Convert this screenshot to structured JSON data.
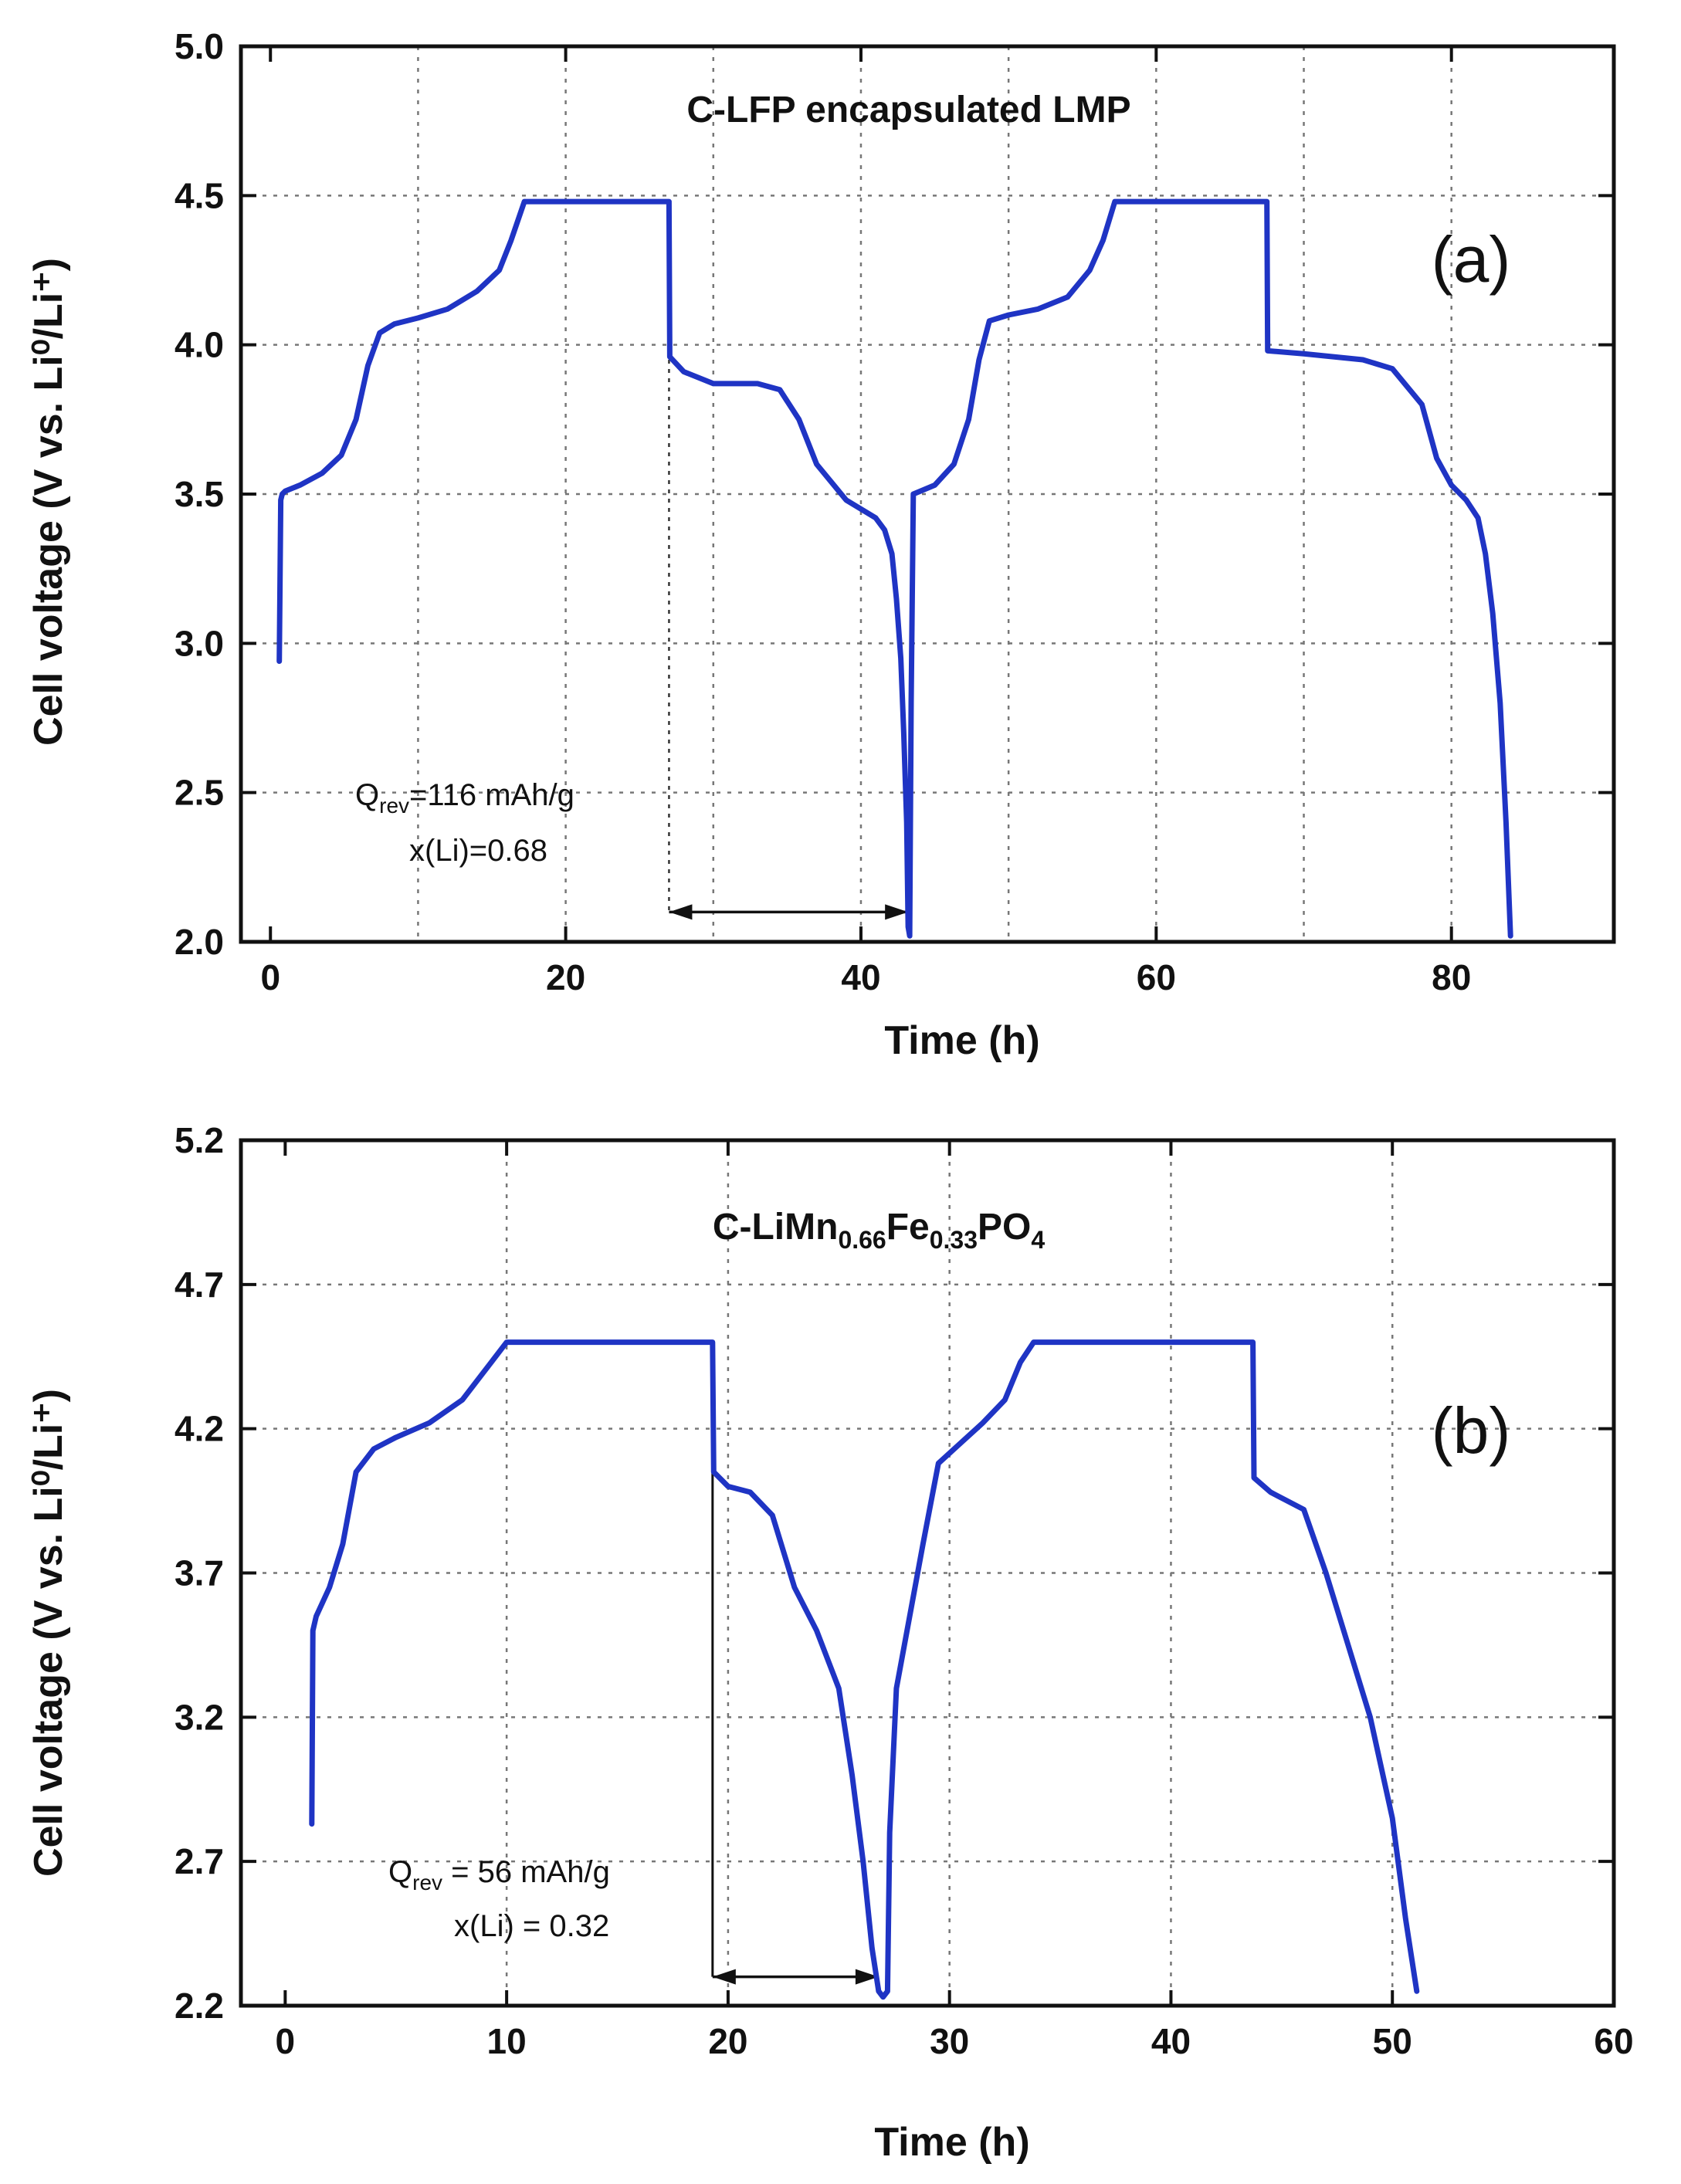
{
  "chart_data": [
    {
      "type": "line",
      "panel": "a",
      "title": "C-LFP encapsulated LMP",
      "panel_label": "(a)",
      "xlabel": "Time (h)",
      "ylabel": "Cell voltage (V vs. Li⁰/Li⁺)",
      "xlim": [
        -2,
        91
      ],
      "ylim": [
        2.0,
        5.0
      ],
      "xticks": [
        0,
        20,
        40,
        60,
        80
      ],
      "xtick_labels": [
        "0",
        "20",
        "40",
        "60",
        "80"
      ],
      "yticks": [
        2.0,
        2.5,
        3.0,
        3.5,
        4.0,
        4.5,
        5.0
      ],
      "ytick_labels": [
        "2.0",
        "2.5",
        "3.0",
        "3.5",
        "4.0",
        "4.5",
        "5.0"
      ],
      "xgrid": [
        10,
        20,
        30,
        40,
        50,
        60,
        70,
        80
      ],
      "ygrid": [
        2.5,
        3.0,
        3.5,
        4.0,
        4.5
      ],
      "grid": true,
      "annotation": {
        "q_prefix": "Q",
        "q_sub": "rev",
        "q_value": "=116 mAh/g",
        "x_li": "x(Li)=0.68",
        "arrow_from": 27,
        "arrow_to": 43.2,
        "arrow_y": 2.1,
        "guide_x": 27,
        "guide_from_y": 2.1,
        "guide_to_y": 3.95
      },
      "series": [
        {
          "name": "C-LFP encapsulated LMP",
          "color": "#1f34c4",
          "x": [
            0.6,
            0.7,
            0.8,
            1.0,
            2.0,
            3.5,
            4.8,
            5.8,
            6.6,
            7.4,
            8.4,
            10,
            12,
            14,
            15.5,
            16.3,
            17.2,
            20,
            24,
            27.0,
            27.05,
            28,
            30,
            33,
            34.5,
            35.8,
            37,
            39,
            41,
            41.6,
            42.1,
            42.4,
            42.7,
            42.9,
            43.1,
            43.2,
            43.3,
            43.4,
            43.55,
            45,
            46.3,
            47.3,
            48,
            48.7,
            50,
            52,
            54,
            55.5,
            56.4,
            57.2,
            60,
            64,
            67.5,
            67.55,
            70,
            74,
            76,
            78,
            79,
            80,
            81,
            81.8,
            82.3,
            82.8,
            83.3,
            83.7,
            84.0
          ],
          "y": [
            2.94,
            3.48,
            3.5,
            3.51,
            3.53,
            3.57,
            3.63,
            3.75,
            3.93,
            4.04,
            4.07,
            4.09,
            4.12,
            4.18,
            4.25,
            4.35,
            4.48,
            4.48,
            4.48,
            4.48,
            3.96,
            3.91,
            3.87,
            3.87,
            3.85,
            3.75,
            3.6,
            3.48,
            3.42,
            3.38,
            3.3,
            3.15,
            2.95,
            2.7,
            2.4,
            2.05,
            2.02,
            2.8,
            3.5,
            3.53,
            3.6,
            3.75,
            3.95,
            4.08,
            4.1,
            4.12,
            4.16,
            4.25,
            4.35,
            4.48,
            4.48,
            4.48,
            4.48,
            3.98,
            3.97,
            3.95,
            3.92,
            3.8,
            3.62,
            3.53,
            3.48,
            3.42,
            3.3,
            3.1,
            2.8,
            2.4,
            2.02
          ]
        }
      ]
    },
    {
      "type": "line",
      "panel": "b",
      "title_main": "C-LiMn",
      "title_sub1": "0.66",
      "title_mid": "Fe",
      "title_sub2": "0.33",
      "title_end": "PO",
      "title_sub3": "4",
      "panel_label": "(b)",
      "xlabel": "Time (h)",
      "ylabel": "Cell voltage (V vs. Li⁰/Li⁺)",
      "xlim": [
        -2,
        60
      ],
      "ylim": [
        2.2,
        5.2
      ],
      "xticks": [
        0,
        10,
        20,
        30,
        40,
        50,
        60
      ],
      "xtick_labels": [
        "0",
        "10",
        "20",
        "30",
        "40",
        "50",
        "60"
      ],
      "yticks": [
        2.2,
        2.7,
        3.2,
        3.7,
        4.2,
        4.7,
        5.2
      ],
      "ytick_labels": [
        "2.2",
        "2.7",
        "3.2",
        "3.7",
        "4.2",
        "4.7",
        "5.2"
      ],
      "xgrid": [
        10,
        20,
        30,
        40,
        50
      ],
      "ygrid": [
        2.7,
        3.2,
        3.7,
        4.2,
        4.7
      ],
      "grid": true,
      "annotation": {
        "q_prefix": "Q",
        "q_sub": "rev",
        "q_value": " = 56 mAh/g",
        "x_li": "x(Li) = 0.32",
        "arrow_from": 19.3,
        "arrow_to": 26.8,
        "arrow_y": 2.3,
        "guide_x": 19.3,
        "guide_from_y": 2.3,
        "guide_to_y": 4.05
      },
      "series": [
        {
          "name": "C-LiMn0.66Fe0.33PO4",
          "color": "#1f34c4",
          "x": [
            1.2,
            1.25,
            1.4,
            2.0,
            2.6,
            3.2,
            4.0,
            5.0,
            6.5,
            8.0,
            9.3,
            10.0,
            14,
            19.3,
            19.35,
            20,
            21,
            22,
            23,
            24,
            25,
            25.6,
            26.1,
            26.5,
            26.8,
            27.0,
            27.2,
            27.3,
            27.6,
            28.2,
            28.8,
            29.5,
            30.5,
            31.5,
            32.5,
            33.2,
            33.8,
            38,
            43.7,
            43.75,
            44.5,
            46,
            47,
            48,
            49,
            50,
            50.6,
            51.1
          ],
          "y": [
            2.83,
            3.5,
            3.55,
            3.65,
            3.8,
            4.05,
            4.13,
            4.17,
            4.22,
            4.3,
            4.43,
            4.5,
            4.5,
            4.5,
            4.05,
            4.0,
            3.98,
            3.9,
            3.65,
            3.5,
            3.3,
            3.0,
            2.7,
            2.4,
            2.25,
            2.23,
            2.25,
            2.8,
            3.3,
            3.55,
            3.8,
            4.08,
            4.15,
            4.22,
            4.3,
            4.43,
            4.5,
            4.5,
            4.5,
            4.03,
            3.98,
            3.92,
            3.7,
            3.45,
            3.2,
            2.85,
            2.5,
            2.25
          ]
        }
      ]
    }
  ]
}
